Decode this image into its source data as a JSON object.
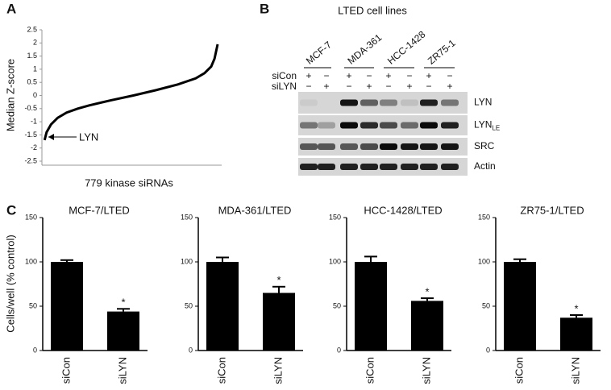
{
  "panel_labels": [
    "A",
    "B",
    "C"
  ],
  "chart_data": [
    {
      "type": "line",
      "y_label": "Median Z-score",
      "x_label": "779 kinase siRNAs",
      "annotation": "LYN",
      "x": [
        1,
        10,
        30,
        60,
        100,
        150,
        200,
        300,
        400,
        500,
        600,
        680,
        720,
        750,
        765,
        779
      ],
      "values": [
        -1.7,
        -1.4,
        -1.1,
        -0.85,
        -0.65,
        -0.5,
        -0.38,
        -0.18,
        0,
        0.2,
        0.42,
        0.65,
        0.85,
        1.1,
        1.4,
        1.95
      ],
      "color": "#000000",
      "xlim": [
        0,
        779
      ],
      "ylim": [
        -2.5,
        2.5
      ],
      "yticks": [
        -2.5,
        -2,
        -1.5,
        -1,
        -0.5,
        0,
        0.5,
        1,
        1.5,
        2,
        2.5
      ]
    },
    {
      "type": "bar",
      "title": "MCF-7/LTED",
      "y_label": "Cells/well (% control)",
      "categories": [
        "siCon",
        "siLYN"
      ],
      "values": [
        100,
        44
      ],
      "errors": [
        2,
        3
      ],
      "significance": [
        null,
        "*"
      ],
      "color": "#000000",
      "ylim": [
        0,
        150
      ],
      "yticks": [
        0,
        50,
        100,
        150
      ]
    },
    {
      "type": "bar",
      "title": "MDA-361/LTED",
      "categories": [
        "siCon",
        "siLYN"
      ],
      "values": [
        100,
        65
      ],
      "errors": [
        5,
        7
      ],
      "significance": [
        null,
        "*"
      ],
      "color": "#000000",
      "ylim": [
        0,
        150
      ],
      "yticks": [
        0,
        50,
        100,
        150
      ]
    },
    {
      "type": "bar",
      "title": "HCC-1428/LTED",
      "categories": [
        "siCon",
        "siLYN"
      ],
      "values": [
        100,
        56
      ],
      "errors": [
        6,
        3
      ],
      "significance": [
        null,
        "*"
      ],
      "color": "#000000",
      "ylim": [
        0,
        150
      ],
      "yticks": [
        0,
        50,
        100,
        150
      ]
    },
    {
      "type": "bar",
      "title": "ZR75-1/LTED",
      "categories": [
        "siCon",
        "siLYN"
      ],
      "values": [
        100,
        37
      ],
      "errors": [
        3,
        3
      ],
      "significance": [
        null,
        "*"
      ],
      "color": "#000000",
      "ylim": [
        0,
        150
      ],
      "yticks": [
        0,
        50,
        100,
        150
      ]
    }
  ],
  "blot": {
    "title": "LTED cell lines",
    "cell_lines": [
      "MCF-7",
      "MDA-361",
      "HCC-1428",
      "ZR75-1"
    ],
    "row_labels": [
      "siCon",
      "siLYN"
    ],
    "signs": [
      [
        "+",
        "−",
        "+",
        "−",
        "+",
        "−",
        "+",
        "−"
      ],
      [
        "−",
        "+",
        "−",
        "+",
        "−",
        "+",
        "−",
        "+"
      ]
    ],
    "bands": [
      {
        "text": "LYN"
      },
      {
        "text": "LYN",
        "subscript": "LE"
      },
      {
        "text": "SRC"
      },
      {
        "text": "Actin"
      }
    ]
  }
}
